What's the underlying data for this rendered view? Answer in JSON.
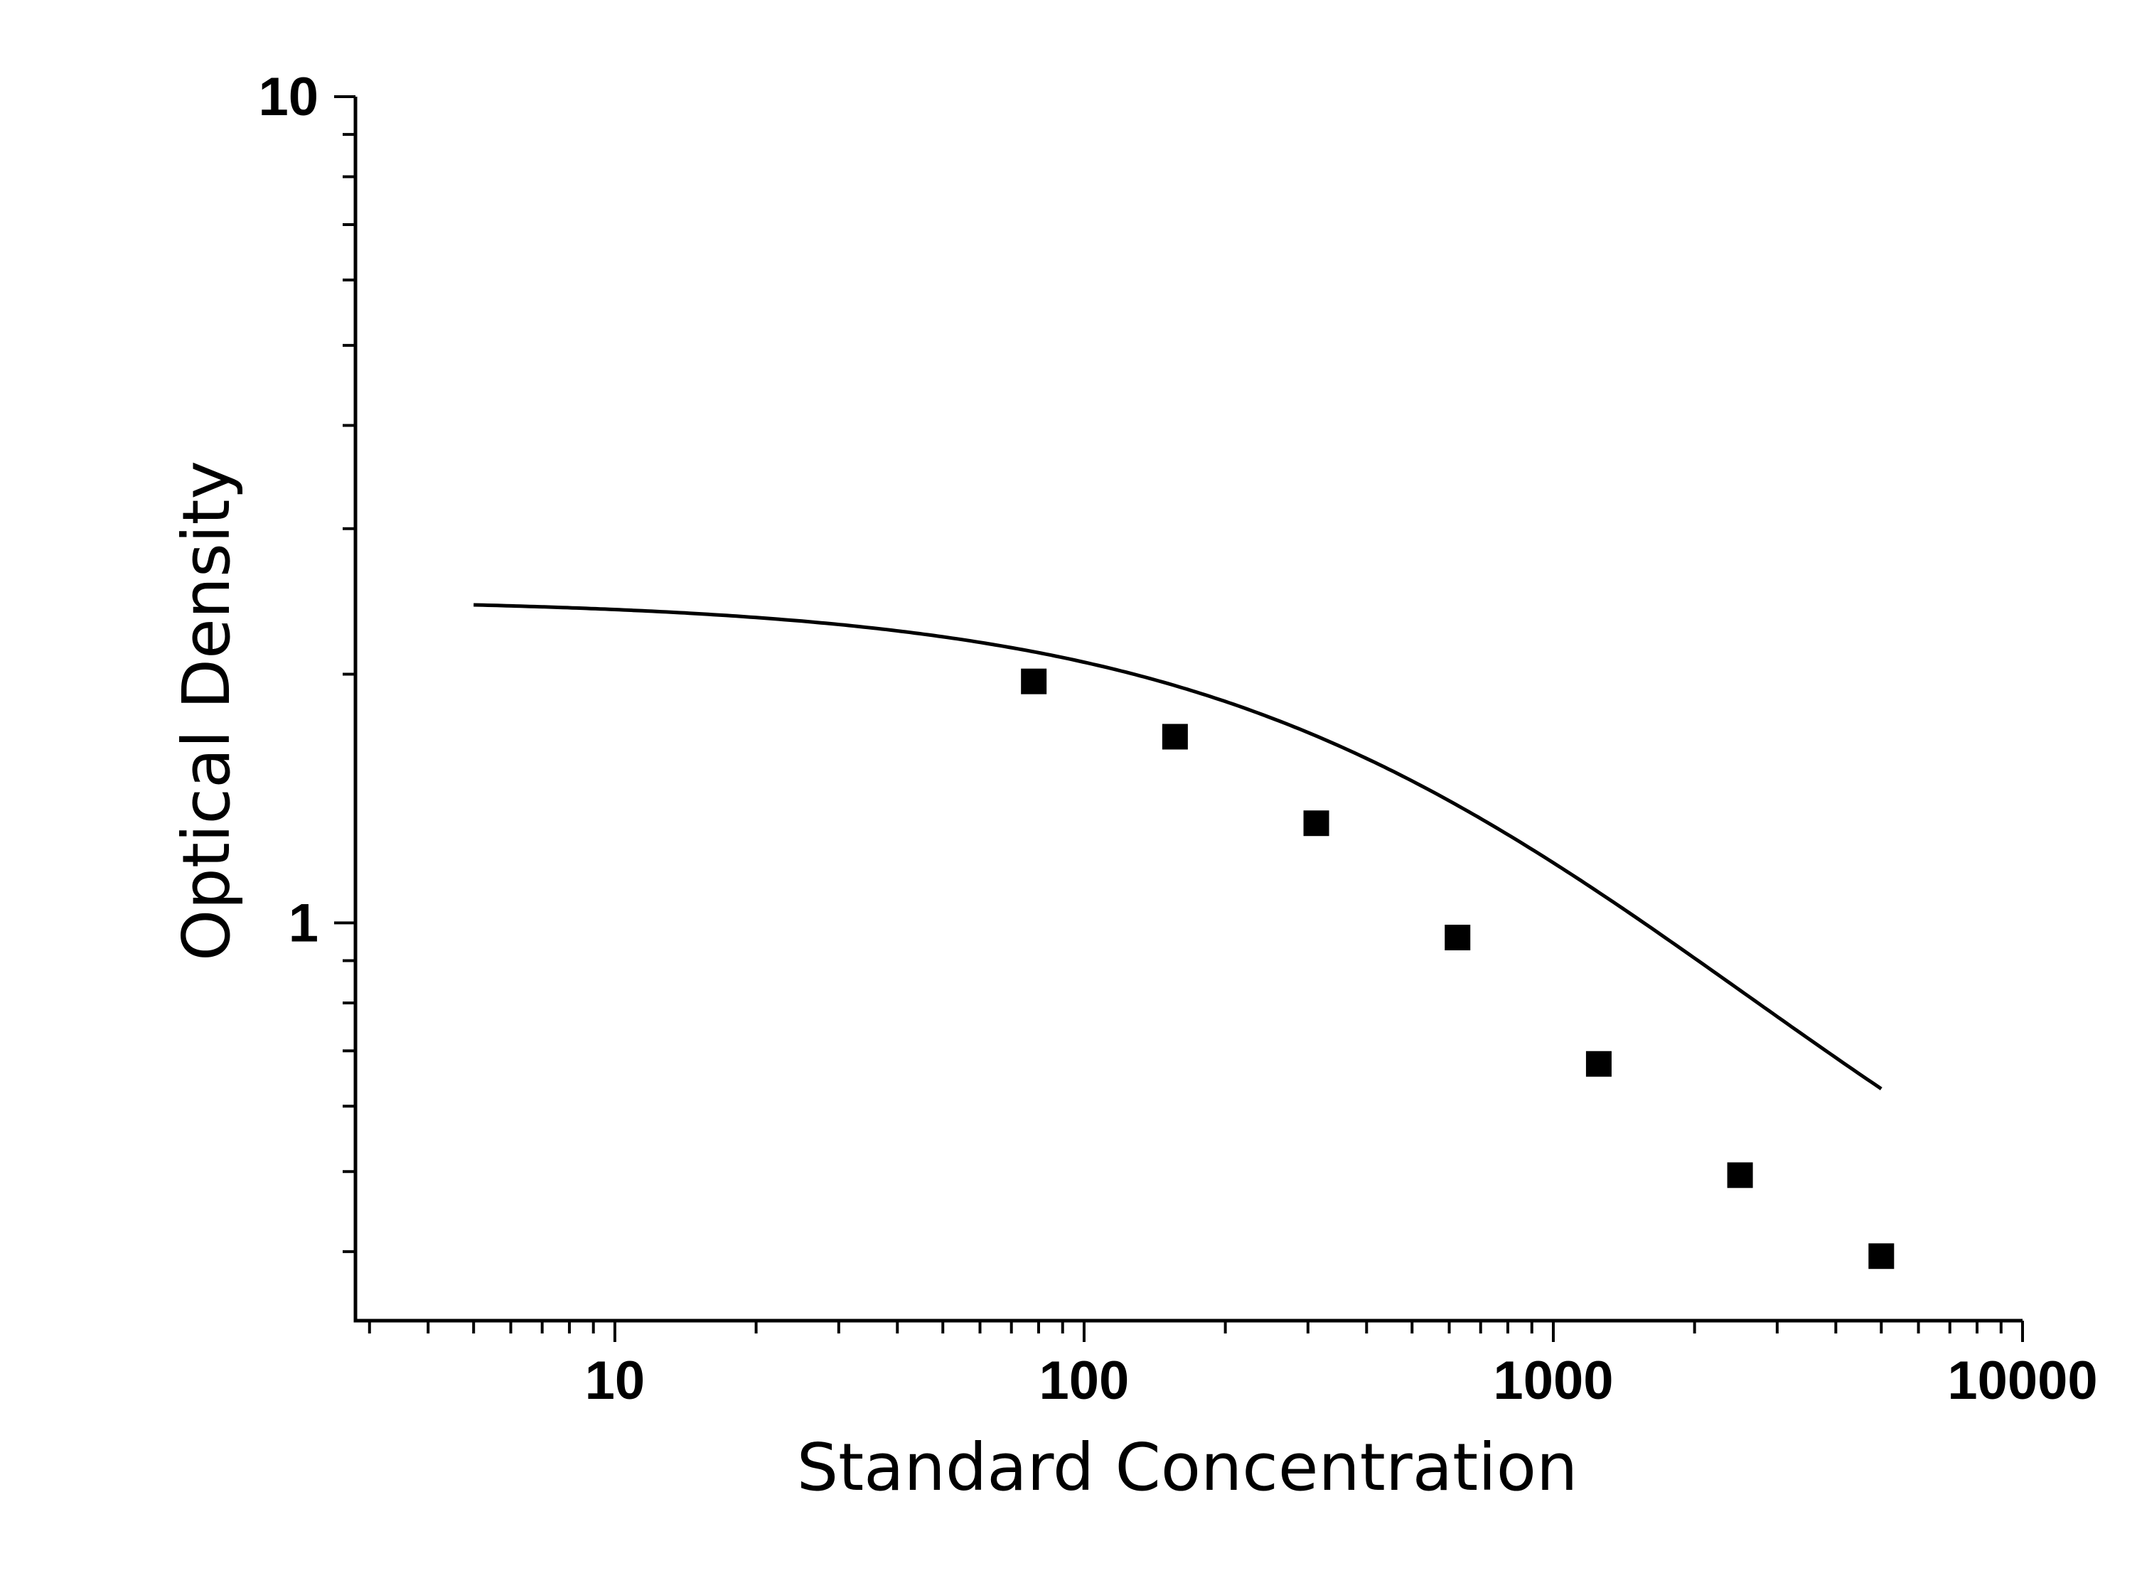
{
  "chart_data": {
    "type": "scatter",
    "title": "",
    "xlabel": "Standard Concentration",
    "ylabel": "Optical Density",
    "x_scale": "log",
    "y_scale": "log",
    "xlim": [
      2.8,
      10000
    ],
    "ylim": [
      0.33,
      10
    ],
    "x_ticks": [
      {
        "value": 10,
        "label": "10"
      },
      {
        "value": 100,
        "label": "100"
      },
      {
        "value": 1000,
        "label": "1000"
      },
      {
        "value": 10000,
        "label": "10000"
      }
    ],
    "y_ticks": [
      {
        "value": 1,
        "label": "1"
      },
      {
        "value": 10,
        "label": "10"
      }
    ],
    "grid": false,
    "legend": "none",
    "series": [
      {
        "marker": "square",
        "color": "#000000",
        "x": [
          78.125,
          156.25,
          312.5,
          625,
          1250,
          2500,
          5000
        ],
        "y": [
          1.96,
          1.68,
          1.32,
          0.96,
          0.675,
          0.495,
          0.395
        ]
      }
    ],
    "fit_curve": {
      "model": "4PL",
      "color": "#000000",
      "x_range": [
        5,
        5000
      ],
      "params": {
        "top": 2.47,
        "bottom": 0.27,
        "ec50": 650,
        "hill": 0.8
      }
    }
  }
}
